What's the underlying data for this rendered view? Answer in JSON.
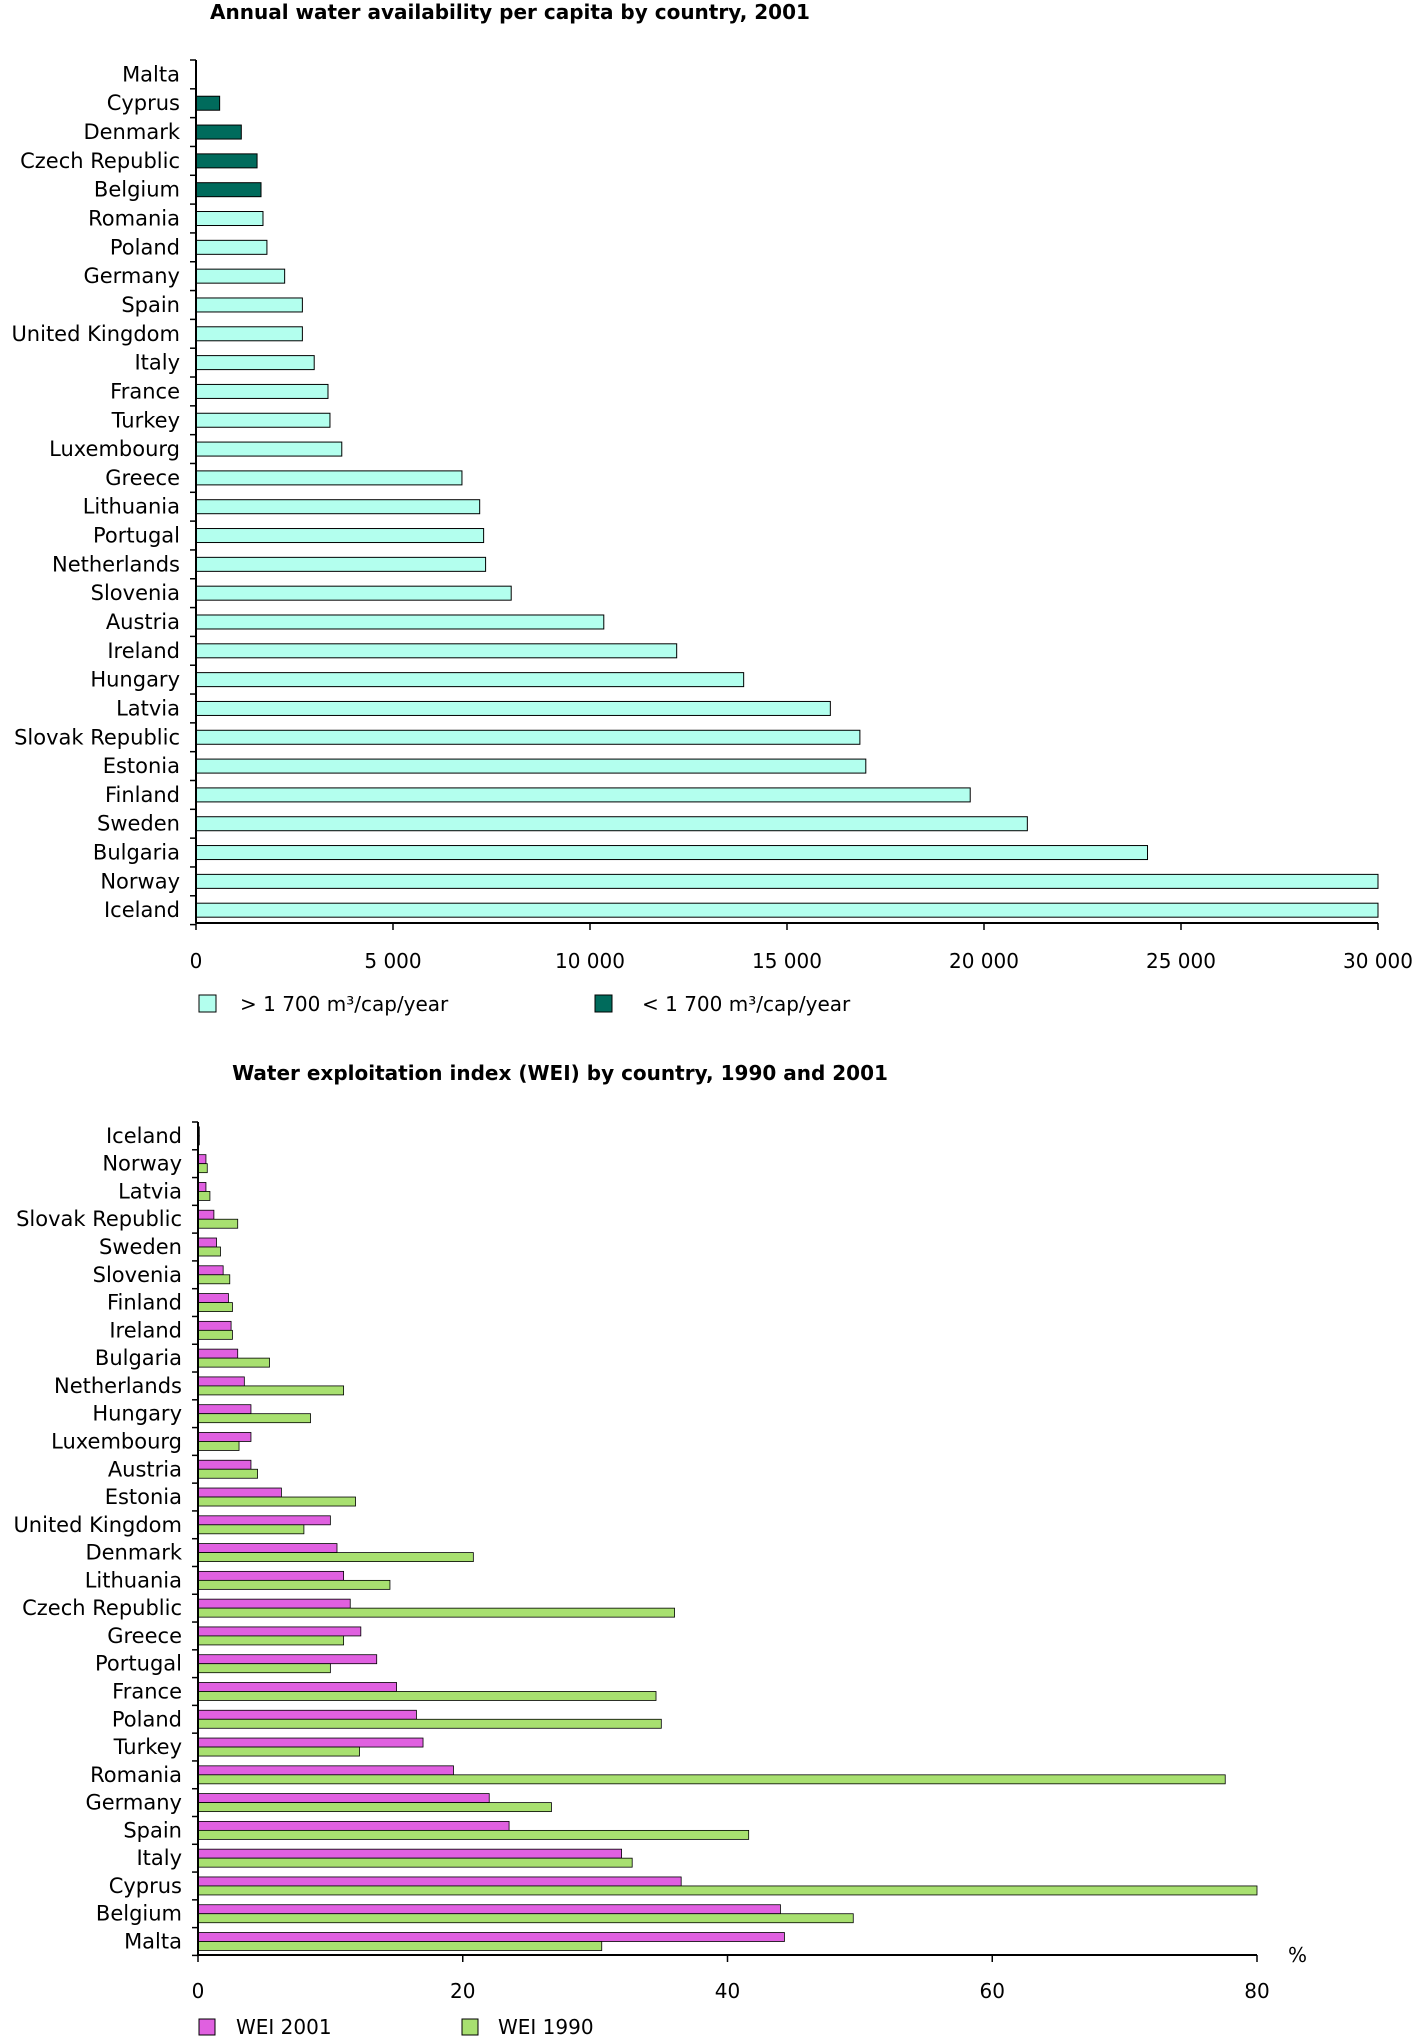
{
  "charts": [
    {
      "type": "bar",
      "orientation": "horizontal",
      "title": "Annual water availability per capita by country, 2001",
      "xlabel": "",
      "ylabel": "",
      "xlim": [
        0,
        30000
      ],
      "ticks": [
        {
          "value": 0,
          "label": "0"
        },
        {
          "value": 5000,
          "label": "5 000"
        },
        {
          "value": 10000,
          "label": "10 000"
        },
        {
          "value": 15000,
          "label": "15 000"
        },
        {
          "value": 20000,
          "label": "20 000"
        },
        {
          "value": 25000,
          "label": "25 000"
        },
        {
          "value": 30000,
          "label": "30 000"
        }
      ],
      "grid": false,
      "legend_position": "bottom",
      "legend": [
        {
          "label": "> 1 700 m³/cap/year",
          "color": "#b3ffee"
        },
        {
          "label": "< 1 700 m³/cap/year",
          "color": "#006b5c"
        }
      ],
      "categories": [
        "Malta",
        "Cyprus",
        "Denmark",
        "Czech Republic",
        "Belgium",
        "Romania",
        "Poland",
        "Germany",
        "Spain",
        "United Kingdom",
        "Italy",
        "France",
        "Turkey",
        "Luxembourg",
        "Greece",
        "Lithuania",
        "Portugal",
        "Netherlands",
        "Slovenia",
        "Austria",
        "Ireland",
        "Hungary",
        "Latvia",
        "Slovak Republic",
        "Estonia",
        "Finland",
        "Sweden",
        "Bulgaria",
        "Norway",
        "Iceland"
      ],
      "values": [
        0,
        600,
        1150,
        1550,
        1650,
        1700,
        1800,
        2250,
        2700,
        2700,
        3000,
        3350,
        3400,
        3700,
        6750,
        7200,
        7300,
        7350,
        8000,
        10350,
        12200,
        13900,
        16100,
        16850,
        17000,
        19650,
        21100,
        24150,
        30000,
        30000
      ],
      "classes": [
        1,
        1,
        1,
        1,
        1,
        0,
        0,
        0,
        0,
        0,
        0,
        0,
        0,
        0,
        0,
        0,
        0,
        0,
        0,
        0,
        0,
        0,
        0,
        0,
        0,
        0,
        0,
        0,
        0,
        0
      ]
    },
    {
      "type": "bar",
      "orientation": "horizontal",
      "title": "Water exploitation index (WEI) by country, 1990 and 2001",
      "xlabel": "%",
      "ylabel": "",
      "xlim": [
        0,
        80
      ],
      "ticks": [
        {
          "value": 0,
          "label": "0"
        },
        {
          "value": 20,
          "label": "20"
        },
        {
          "value": 40,
          "label": "40"
        },
        {
          "value": 60,
          "label": "60"
        },
        {
          "value": 80,
          "label": "80"
        }
      ],
      "grid": false,
      "legend_position": "bottom",
      "categories": [
        "Iceland",
        "Norway",
        "Latvia",
        "Slovak Republic",
        "Sweden",
        "Slovenia",
        "Finland",
        "Ireland",
        "Bulgaria",
        "Netherlands",
        "Hungary",
        "Luxembourg",
        "Austria",
        "Estonia",
        "United Kingdom",
        "Denmark",
        "Lithuania",
        "Czech Republic",
        "Greece",
        "Portugal",
        "France",
        "Poland",
        "Turkey",
        "Romania",
        "Germany",
        "Spain",
        "Italy",
        "Cyprus",
        "Belgium",
        "Malta"
      ],
      "series": [
        {
          "name": "WEI 2001",
          "color": "#e060e0",
          "values": [
            0.1,
            0.6,
            0.6,
            1.2,
            1.4,
            1.9,
            2.3,
            2.5,
            3.0,
            3.5,
            4.0,
            4.0,
            4.0,
            6.3,
            10.0,
            10.5,
            11.0,
            11.5,
            12.3,
            13.5,
            15.0,
            16.5,
            17.0,
            19.3,
            22.0,
            23.5,
            32.0,
            36.5,
            44.0,
            44.3
          ]
        },
        {
          "name": "WEI 1990",
          "color": "#a8e070",
          "values": [
            0.1,
            0.7,
            0.9,
            3.0,
            1.7,
            2.4,
            2.6,
            2.6,
            5.4,
            11.0,
            8.5,
            3.1,
            4.5,
            11.9,
            8.0,
            20.8,
            14.5,
            36.0,
            11.0,
            10.0,
            34.6,
            35.0,
            12.2,
            77.6,
            26.7,
            41.6,
            32.8,
            80.0,
            49.5,
            30.5
          ]
        }
      ]
    }
  ]
}
